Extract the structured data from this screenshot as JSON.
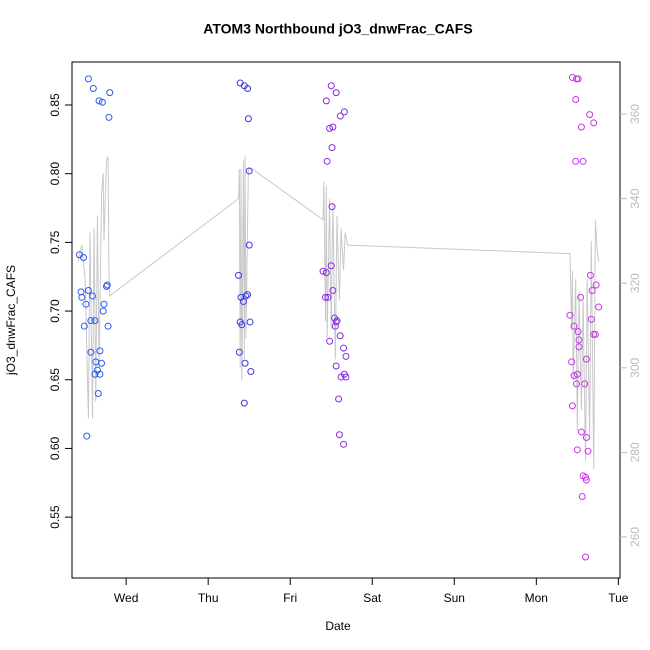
{
  "chart_data": {
    "type": "scatter",
    "title": "ATOM3 Northbound jO3_dnwFrac_CAFS",
    "x_label": "Date",
    "y_label": "jO3_dnwFrac_CAFS",
    "xlim": [
      2.34,
      9.02
    ],
    "xticks": [
      {
        "value": 3,
        "label": "Wed"
      },
      {
        "value": 4,
        "label": "Thu"
      },
      {
        "value": 5,
        "label": "Fri"
      },
      {
        "value": 6,
        "label": "Sat"
      },
      {
        "value": 7,
        "label": "Sun"
      },
      {
        "value": 8,
        "label": "Mon"
      },
      {
        "value": 9,
        "label": "Tue"
      }
    ],
    "ylim": [
      0.5057,
      0.8813
    ],
    "yticks": [
      0.55,
      {
        "value": 0.6,
        "label": "0.60"
      },
      0.65,
      {
        "value": 0.7,
        "label": "0.70"
      },
      0.75,
      {
        "value": 0.8,
        "label": "0.80"
      },
      0.85
    ],
    "y2lim": [
      250.3,
      372.3
    ],
    "y2ticks": [
      260,
      280,
      300,
      320,
      340,
      360
    ],
    "series": [
      {
        "type": "line",
        "axis": "y2",
        "color": "#c8c8c8",
        "x": [
          2.41,
          2.46,
          2.5,
          2.54,
          2.56,
          2.59,
          2.61,
          2.63,
          2.65,
          2.67,
          2.7,
          2.72,
          2.73,
          2.76,
          2.78,
          2.79,
          2.8,
          4.37,
          4.38,
          4.39,
          4.4,
          4.41,
          4.43,
          4.44,
          4.45,
          4.46,
          4.49,
          4.51,
          4.54,
          5.4,
          5.41,
          5.43,
          5.44,
          5.45,
          5.48,
          5.5,
          5.52,
          5.55,
          5.57,
          5.6,
          5.62,
          5.65,
          5.67,
          5.7,
          8.41,
          8.43,
          8.44,
          8.45,
          8.48,
          8.5,
          8.52,
          8.55,
          8.57,
          8.6,
          8.62,
          8.65,
          8.67,
          8.7,
          8.72,
          8.74,
          8.76
        ],
        "values": [
          325,
          329,
          321,
          288,
          332,
          288,
          333,
          292,
          336,
          300,
          341,
          346,
          330,
          349,
          350,
          323,
          317,
          340,
          347,
          300,
          347,
          297,
          349,
          302,
          350,
          307,
          347,
          347,
          347,
          335,
          344,
          311,
          343,
          307,
          340,
          309,
          339,
          302,
          336,
          316,
          333,
          323,
          332,
          329,
          327,
          309,
          323,
          297,
          321,
          285,
          318,
          290,
          316,
          278,
          321,
          283,
          330,
          276,
          335,
          328,
          325
        ]
      },
      {
        "type": "scatter",
        "color": "#2d5af0",
        "x": [
          2.43,
          2.48,
          2.45,
          2.46,
          2.54,
          2.59,
          2.51,
          2.57,
          2.62,
          2.49,
          2.78,
          2.73,
          2.77,
          2.76,
          2.72,
          2.68,
          2.57,
          2.63,
          2.7,
          2.65,
          2.62,
          2.68,
          2.66,
          2.52,
          2.54,
          2.6,
          2.67,
          2.71,
          2.8,
          2.79
        ],
        "values": [
          0.741,
          0.739,
          0.714,
          0.71,
          0.715,
          0.711,
          0.705,
          0.693,
          0.693,
          0.689,
          0.689,
          0.705,
          0.719,
          0.718,
          0.7,
          0.671,
          0.67,
          0.663,
          0.662,
          0.657,
          0.654,
          0.654,
          0.64,
          0.609,
          0.869,
          0.862,
          0.853,
          0.852,
          0.859,
          0.841
        ]
      },
      {
        "type": "scatter",
        "color": "#3a3ae6",
        "x": [
          4.39,
          4.44,
          4.48,
          4.49,
          4.5,
          4.5,
          4.37,
          4.4,
          4.43,
          4.41,
          4.39,
          4.48,
          4.46,
          4.51,
          4.38,
          4.45,
          4.52,
          4.44
        ],
        "values": [
          0.866,
          0.864,
          0.862,
          0.84,
          0.802,
          0.748,
          0.726,
          0.71,
          0.707,
          0.69,
          0.692,
          0.712,
          0.711,
          0.692,
          0.67,
          0.662,
          0.656,
          0.633
        ]
      },
      {
        "type": "scatter",
        "color": "#8a2be2",
        "x": [
          5.5,
          5.56,
          5.44,
          5.66,
          5.61,
          5.48,
          5.52,
          5.51,
          5.45,
          5.51,
          5.4,
          5.44,
          5.5,
          5.43,
          5.46,
          5.52,
          5.54,
          5.57,
          5.56,
          5.55,
          5.61,
          5.48,
          5.65,
          5.68,
          5.56,
          5.66,
          5.62,
          5.68,
          5.59,
          5.6,
          5.65
        ],
        "values": [
          0.864,
          0.859,
          0.853,
          0.845,
          0.842,
          0.833,
          0.834,
          0.819,
          0.809,
          0.776,
          0.729,
          0.728,
          0.733,
          0.71,
          0.71,
          0.715,
          0.695,
          0.693,
          0.692,
          0.689,
          0.682,
          0.678,
          0.673,
          0.667,
          0.66,
          0.654,
          0.652,
          0.652,
          0.636,
          0.61,
          0.603
        ]
      },
      {
        "type": "scatter",
        "color": "#cc33ee",
        "x": [
          8.44,
          8.49,
          8.51,
          8.48,
          8.65,
          8.55,
          8.7,
          8.48,
          8.57,
          8.54,
          8.66,
          8.73,
          8.68,
          8.76,
          8.41,
          8.46,
          8.67,
          8.51,
          8.72,
          8.7,
          8.52,
          8.52,
          8.43,
          8.5,
          8.46,
          8.49,
          8.59,
          8.61,
          8.44,
          8.55,
          8.61,
          8.5,
          8.63,
          8.57,
          8.61,
          8.6,
          8.56,
          8.6
        ],
        "values": [
          0.87,
          0.869,
          0.869,
          0.854,
          0.843,
          0.834,
          0.837,
          0.809,
          0.809,
          0.71,
          0.726,
          0.719,
          0.715,
          0.703,
          0.697,
          0.689,
          0.694,
          0.685,
          0.683,
          0.683,
          0.679,
          0.674,
          0.663,
          0.654,
          0.653,
          0.647,
          0.647,
          0.665,
          0.631,
          0.612,
          0.608,
          0.599,
          0.598,
          0.58,
          0.577,
          0.579,
          0.565,
          0.521
        ]
      }
    ]
  }
}
